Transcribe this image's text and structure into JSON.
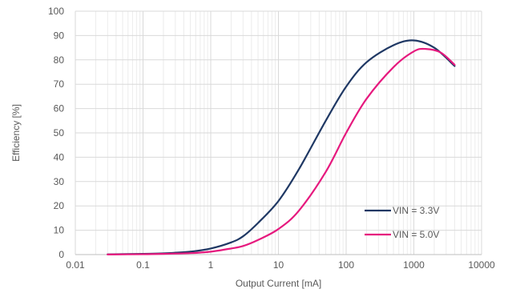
{
  "chart_data": {
    "type": "line",
    "title": "",
    "xlabel": "Output Current [mA]",
    "ylabel": "Efficiency [%]",
    "xscale": "log",
    "xlim": [
      0.01,
      10000
    ],
    "ylim": [
      0,
      100
    ],
    "x_ticks": [
      "0.01",
      "0.1",
      "1",
      "10",
      "100",
      "1000",
      "10000"
    ],
    "y_ticks": [
      "0",
      "10",
      "20",
      "30",
      "40",
      "50",
      "60",
      "70",
      "80",
      "90",
      "100"
    ],
    "grid": true,
    "legend_position": "bottom-right",
    "series": [
      {
        "name": "VIN = 3.3V",
        "color": "#1f3864",
        "points": [
          [
            0.03,
            0.1
          ],
          [
            0.1,
            0.3
          ],
          [
            0.2,
            0.5
          ],
          [
            0.5,
            1.2
          ],
          [
            1,
            2.5
          ],
          [
            2,
            5
          ],
          [
            3,
            7.5
          ],
          [
            5,
            13
          ],
          [
            10,
            22
          ],
          [
            20,
            35
          ],
          [
            50,
            55
          ],
          [
            100,
            69
          ],
          [
            200,
            79
          ],
          [
            500,
            86
          ],
          [
            1000,
            88
          ],
          [
            2000,
            85
          ],
          [
            4000,
            77.5
          ]
        ]
      },
      {
        "name": "VIN = 5.0V",
        "color": "#e6197e",
        "points": [
          [
            0.03,
            0.05
          ],
          [
            0.1,
            0.15
          ],
          [
            0.2,
            0.3
          ],
          [
            0.5,
            0.6
          ],
          [
            1,
            1.2
          ],
          [
            2,
            2.5
          ],
          [
            3,
            3.5
          ],
          [
            5,
            6
          ],
          [
            10,
            10.5
          ],
          [
            20,
            18
          ],
          [
            50,
            34
          ],
          [
            100,
            50
          ],
          [
            200,
            64
          ],
          [
            500,
            77
          ],
          [
            1000,
            83.5
          ],
          [
            1500,
            84.5
          ],
          [
            2500,
            83
          ],
          [
            4000,
            78
          ]
        ]
      }
    ]
  }
}
